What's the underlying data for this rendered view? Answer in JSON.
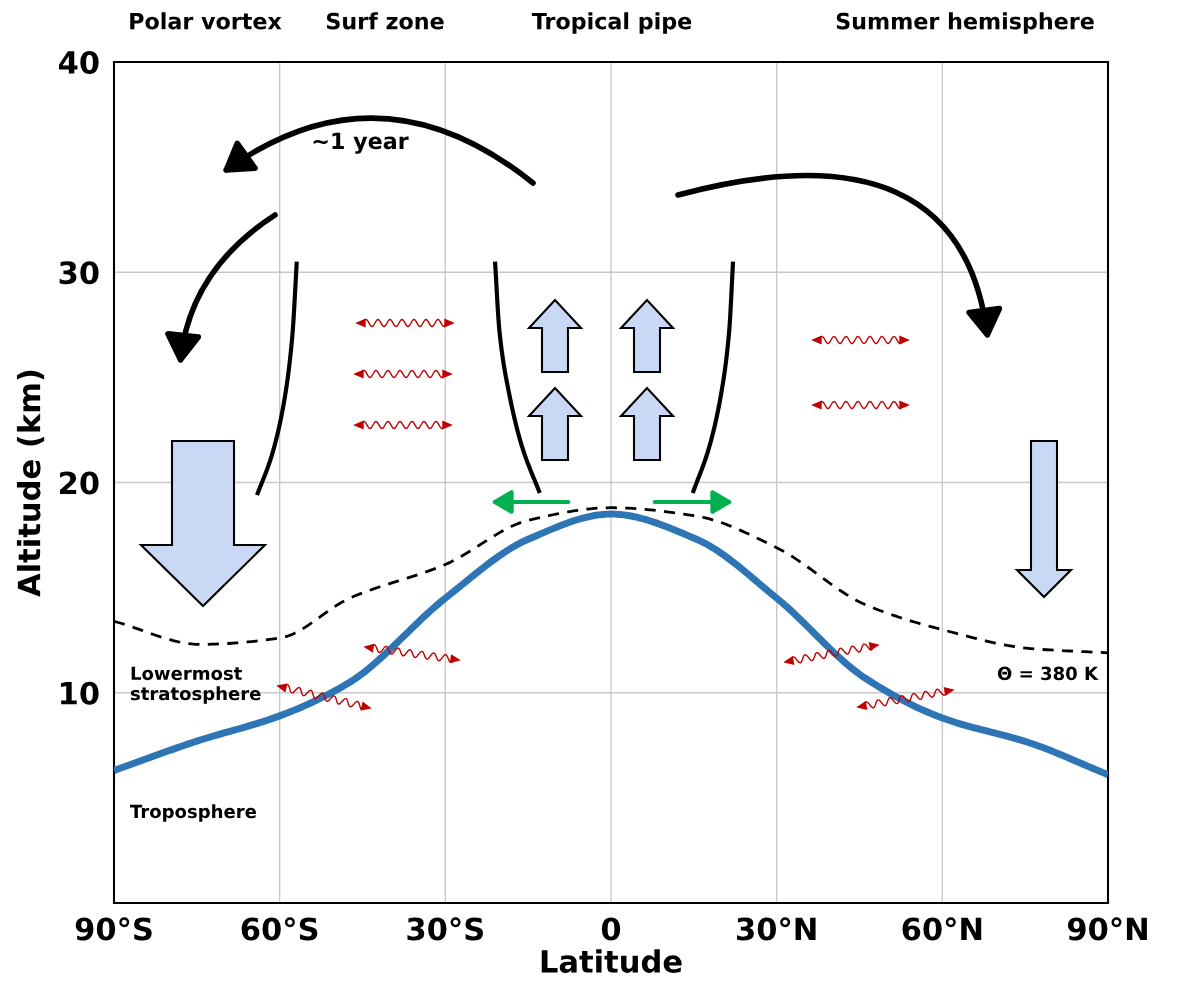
{
  "chart_data": {
    "type": "line",
    "xlabel": "Latitude",
    "ylabel": "Altitude (km)",
    "x": [
      -90,
      -74.4,
      -60,
      -47.3,
      -30,
      -15,
      0,
      15.5,
      30,
      46,
      60,
      76,
      90
    ],
    "series": [
      {
        "color": "#2e75b6",
        "line_style": "solid",
        "x": [
          -90,
          -75,
          -60,
          -47.3,
          -30,
          -15,
          0,
          15.5,
          30,
          46,
          60,
          76,
          90
        ],
        "values": [
          6.3,
          7.7,
          8.9,
          10.5,
          14.5,
          17.3,
          18.5,
          17.3,
          14.5,
          10.7,
          8.8,
          7.6,
          6.1
        ]
      },
      {
        "color": "#000000",
        "line_style": "dashed",
        "values": [
          13.4,
          12.3,
          12.6,
          14.5,
          16.1,
          18.2,
          18.8,
          18.4,
          16.9,
          14.2,
          13.0,
          12.1,
          11.9
        ]
      },
      {
        "color": "#000000",
        "line_style": "solid",
        "x": [
          -64.1,
          -61.3,
          -59.1,
          -57.7,
          -56.9
        ],
        "values": [
          19.4,
          21.4,
          24.0,
          27.0,
          30.5
        ]
      },
      {
        "color": "#000000",
        "line_style": "solid",
        "x": [
          -21.0,
          -20.2,
          -18.5,
          -16.1,
          -12.9
        ],
        "values": [
          30.5,
          27.2,
          24.3,
          21.7,
          19.5
        ]
      },
      {
        "color": "#000000",
        "line_style": "solid",
        "x": [
          14.8,
          17.8,
          20.0,
          21.4,
          22.1
        ],
        "values": [
          19.5,
          21.7,
          24.3,
          27.2,
          30.5
        ]
      }
    ],
    "xlim": [
      -90,
      90
    ],
    "ylim": [
      0,
      40
    ],
    "xticks": [
      {
        "value": -90,
        "label": "90°S"
      },
      {
        "value": -60,
        "label": "60°S"
      },
      {
        "value": -30,
        "label": "30°S"
      },
      0,
      {
        "value": 30,
        "label": "30°N"
      },
      {
        "value": 60,
        "label": "60°N"
      },
      {
        "value": 90,
        "label": "90°N"
      }
    ],
    "yticks": [
      10,
      20,
      30,
      40
    ],
    "grid": true,
    "annotations": [
      "Polar vortex",
      "Surf zone",
      "Tropical pipe",
      "Summer hemisphere",
      "~1 year",
      "Lowermost\nstratosphere",
      "Troposphere",
      "Θ = 380 K"
    ]
  }
}
